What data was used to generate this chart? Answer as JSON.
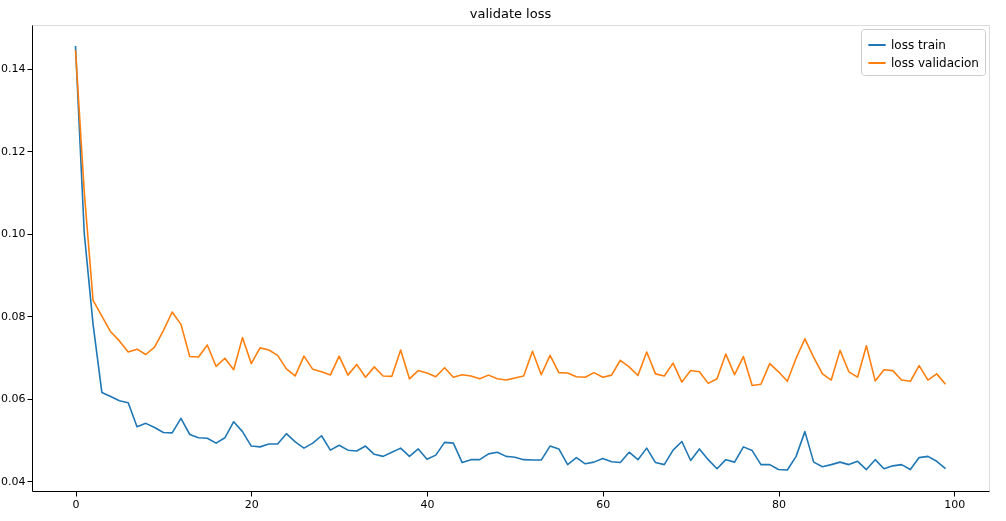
{
  "chart_data": {
    "type": "line",
    "title": "validate loss",
    "legend": "top right",
    "grid": false,
    "x": [
      0,
      1,
      2,
      3,
      4,
      5,
      6,
      7,
      8,
      9,
      10,
      11,
      12,
      13,
      14,
      15,
      16,
      17,
      18,
      19,
      20,
      21,
      22,
      23,
      24,
      25,
      26,
      27,
      28,
      29,
      30,
      31,
      32,
      33,
      34,
      35,
      36,
      37,
      38,
      39,
      40,
      41,
      42,
      43,
      44,
      45,
      46,
      47,
      48,
      49,
      50,
      51,
      52,
      53,
      54,
      55,
      56,
      57,
      58,
      59,
      60,
      61,
      62,
      63,
      64,
      65,
      66,
      67,
      68,
      69,
      70,
      71,
      72,
      73,
      74,
      75,
      76,
      77,
      78,
      79,
      80,
      81,
      82,
      83,
      84,
      85,
      86,
      87,
      88,
      89,
      90,
      91,
      92,
      93,
      94,
      95,
      96,
      97,
      98,
      99
    ],
    "xlim": [
      -4.95,
      103.95
    ],
    "xticks": [
      0,
      20,
      40,
      60,
      80,
      100
    ],
    "ylim": [
      0.0376,
      0.1506
    ],
    "yticks": [
      {
        "value": 0.04,
        "label": "0.04"
      },
      {
        "value": 0.06,
        "label": "0.06"
      },
      {
        "value": 0.08,
        "label": "0.08"
      },
      {
        "value": 0.1,
        "label": "0.10"
      },
      {
        "value": 0.12,
        "label": "0.12"
      },
      {
        "value": 0.14,
        "label": "0.14"
      }
    ],
    "series": [
      {
        "name": "loss train",
        "color": "#1f77b4",
        "values": [
          0.1455,
          0.1,
          0.078,
          0.0615,
          0.0605,
          0.0595,
          0.059,
          0.0532,
          0.054,
          0.053,
          0.0518,
          0.0517,
          0.0552,
          0.0513,
          0.0505,
          0.0504,
          0.0492,
          0.0505,
          0.0544,
          0.052,
          0.0485,
          0.0483,
          0.049,
          0.049,
          0.0515,
          0.0495,
          0.048,
          0.0492,
          0.051,
          0.0475,
          0.0487,
          0.0475,
          0.0473,
          0.0485,
          0.0465,
          0.046,
          0.047,
          0.048,
          0.046,
          0.0478,
          0.0453,
          0.0463,
          0.0494,
          0.0492,
          0.0445,
          0.0452,
          0.0452,
          0.0466,
          0.047,
          0.046,
          0.0458,
          0.0452,
          0.0451,
          0.0451,
          0.0485,
          0.0478,
          0.044,
          0.0457,
          0.0442,
          0.0446,
          0.0455,
          0.0447,
          0.0445,
          0.047,
          0.0452,
          0.048,
          0.0445,
          0.044,
          0.0475,
          0.0496,
          0.045,
          0.0478,
          0.0452,
          0.043,
          0.0452,
          0.0446,
          0.0483,
          0.0474,
          0.044,
          0.044,
          0.0428,
          0.0427,
          0.046,
          0.052,
          0.0446,
          0.0435,
          0.044,
          0.0446,
          0.044,
          0.0448,
          0.0428,
          0.0452,
          0.043,
          0.0437,
          0.044,
          0.0428,
          0.0457,
          0.046,
          0.0448,
          0.043
        ]
      },
      {
        "name": "loss validacion",
        "color": "#ff7f0e",
        "values": [
          0.1445,
          0.11,
          0.0838,
          0.08,
          0.0762,
          0.074,
          0.0713,
          0.072,
          0.0707,
          0.0725,
          0.0765,
          0.081,
          0.078,
          0.0702,
          0.0701,
          0.073,
          0.0678,
          0.0698,
          0.067,
          0.0748,
          0.0685,
          0.0723,
          0.0718,
          0.0705,
          0.0672,
          0.0655,
          0.0703,
          0.0671,
          0.0665,
          0.0657,
          0.0703,
          0.0657,
          0.0683,
          0.0652,
          0.0677,
          0.0655,
          0.0654,
          0.0718,
          0.0648,
          0.0668,
          0.0662,
          0.0653,
          0.0675,
          0.0652,
          0.0658,
          0.0655,
          0.0648,
          0.0657,
          0.0648,
          0.0645,
          0.065,
          0.0655,
          0.0715,
          0.0658,
          0.0705,
          0.0663,
          0.0662,
          0.0653,
          0.0652,
          0.0663,
          0.0652,
          0.0657,
          0.0693,
          0.0677,
          0.0656,
          0.0713,
          0.066,
          0.0655,
          0.0686,
          0.064,
          0.0668,
          0.0665,
          0.0637,
          0.0648,
          0.0708,
          0.0658,
          0.0702,
          0.0632,
          0.0635,
          0.0685,
          0.0665,
          0.0642,
          0.0698,
          0.0745,
          0.07,
          0.066,
          0.0645,
          0.0717,
          0.0665,
          0.0652,
          0.0728,
          0.0643,
          0.067,
          0.0668,
          0.0645,
          0.0642,
          0.068,
          0.0645,
          0.066,
          0.0635
        ]
      }
    ]
  }
}
